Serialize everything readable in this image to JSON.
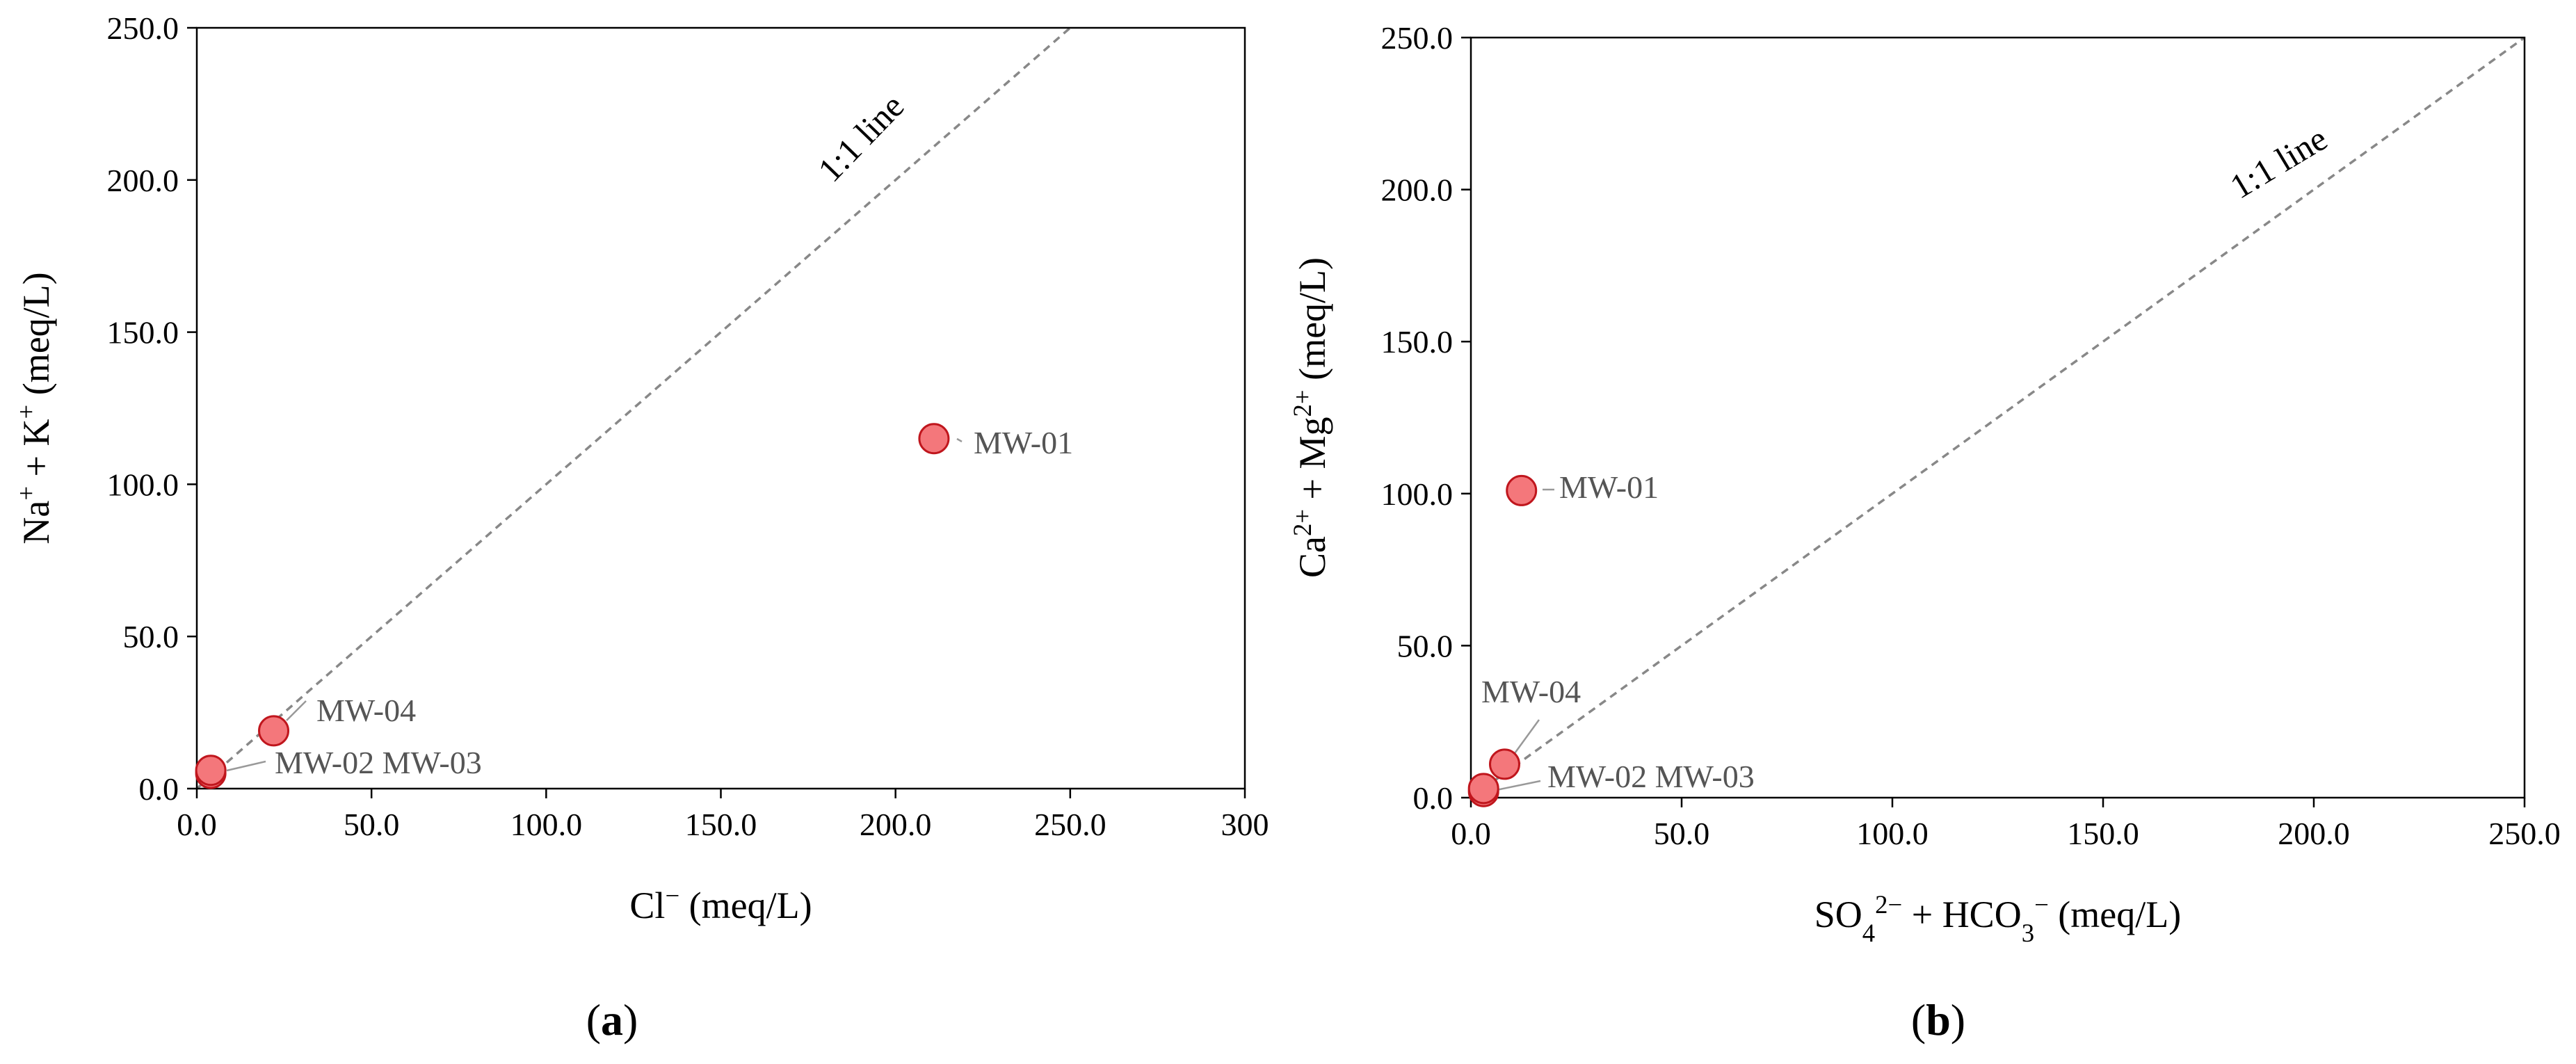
{
  "chart_data": [
    {
      "type": "scatter",
      "panel_label": "(a)",
      "xlabel": {
        "main": "Cl",
        "sup": "−",
        "unit": " (meq/L)"
      },
      "ylabel": {
        "parts": [
          {
            "t": "Na"
          },
          {
            "t": "+",
            "sup": true
          },
          {
            "t": " + K"
          },
          {
            "t": "+",
            "sup": true
          },
          {
            "t": " (meq/L)"
          }
        ]
      },
      "xlim": [
        0,
        300
      ],
      "ylim": [
        0,
        250
      ],
      "xticks": [
        "0.0",
        "50.0",
        "100.0",
        "150.0",
        "200.0",
        "250.0",
        "300"
      ],
      "yticks": [
        "0.0",
        "50.0",
        "100.0",
        "150.0",
        "200.0",
        "250.0"
      ],
      "grid": false,
      "reference_line": {
        "label": "1:1 line"
      },
      "points": [
        {
          "label": "MW-01",
          "x": 211,
          "y": 115
        },
        {
          "label": "MW-04",
          "x": 22,
          "y": 19
        },
        {
          "label": "MW-02",
          "x": 4,
          "y": 6
        },
        {
          "label": "MW-03",
          "x": 4,
          "y": 5
        }
      ],
      "annotations": [
        "MW-01",
        "MW-04",
        "MW-02 MW-03"
      ]
    },
    {
      "type": "scatter",
      "panel_label": "(b)",
      "xlabel": {
        "parts": [
          {
            "t": "SO"
          },
          {
            "t": "4",
            "sub": true
          },
          {
            "t": "2−",
            "sup": true
          },
          {
            "t": " + HCO"
          },
          {
            "t": "3",
            "sub": true
          },
          {
            "t": "−",
            "sup": true
          },
          {
            "t": " (meq/L)"
          }
        ]
      },
      "ylabel": {
        "parts": [
          {
            "t": "Ca"
          },
          {
            "t": "2+",
            "sup": true
          },
          {
            "t": " + Mg"
          },
          {
            "t": "2+",
            "sup": true
          },
          {
            "t": " (meq/L)"
          }
        ]
      },
      "xlim": [
        0,
        250
      ],
      "ylim": [
        0,
        250
      ],
      "xticks": [
        "0.0",
        "50.0",
        "100.0",
        "150.0",
        "200.0",
        "250.0"
      ],
      "yticks": [
        "0.0",
        "50.0",
        "100.0",
        "150.0",
        "200.0",
        "250.0"
      ],
      "grid": false,
      "reference_line": {
        "label": "1:1 line"
      },
      "points": [
        {
          "label": "MW-01",
          "x": 12,
          "y": 101
        },
        {
          "label": "MW-04",
          "x": 8,
          "y": 11
        },
        {
          "label": "MW-02",
          "x": 3,
          "y": 3
        },
        {
          "label": "MW-03",
          "x": 3,
          "y": 2
        }
      ],
      "annotations": [
        "MW-01",
        "MW-04",
        "MW-02 MW-03"
      ]
    }
  ],
  "colors": {
    "marker_fill": "#f4777b",
    "marker_stroke": "#c0161d",
    "reference_line": "#888888",
    "axis": "#000000",
    "annotation_text": "#555555",
    "leader_line": "#999999"
  }
}
